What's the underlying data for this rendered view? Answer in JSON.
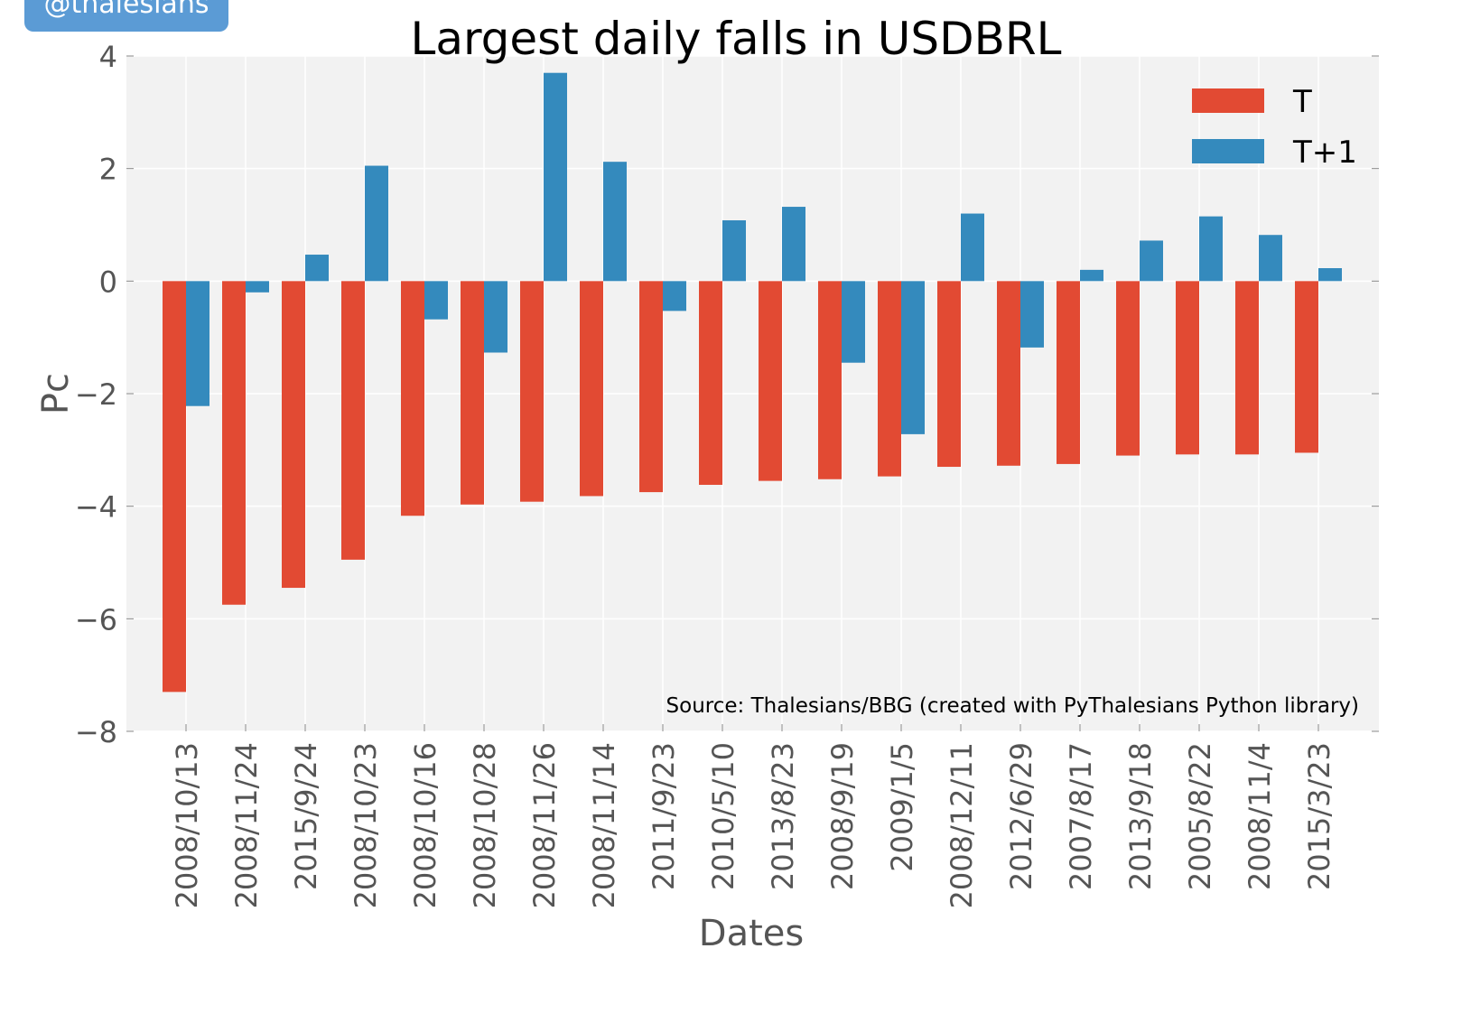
{
  "badge": "@thalesians",
  "colors": {
    "T": "#e24a33",
    "T1": "#348abd",
    "plot_bg": "#f2f2f2",
    "grid": "#ffffff",
    "text": "#555555",
    "title": "#000000"
  },
  "chart_data": {
    "type": "bar",
    "title": "Largest daily falls in USDBRL",
    "xlabel": "Dates",
    "ylabel": "Pc",
    "ylim": [
      -8,
      4
    ],
    "yticks": [
      4,
      2,
      0,
      -2,
      -4,
      -6,
      -8
    ],
    "ytick_labels": [
      "4",
      "2",
      "0",
      "−2",
      "−4",
      "−6",
      "−8"
    ],
    "grid": true,
    "legend_position": "top-right",
    "source": "Source: Thalesians/BBG (created with PyThalesians Python library)",
    "categories": [
      "2008/10/13",
      "2008/11/24",
      "2015/9/24",
      "2008/10/23",
      "2008/10/16",
      "2008/10/28",
      "2008/11/26",
      "2008/11/14",
      "2011/9/23",
      "2010/5/10",
      "2013/8/23",
      "2008/9/19",
      "2009/1/5",
      "2008/12/11",
      "2012/6/29",
      "2007/8/17",
      "2013/9/18",
      "2005/8/22",
      "2008/11/4",
      "2015/3/23"
    ],
    "series": [
      {
        "name": "T",
        "color": "#e24a33",
        "values": [
          -7.3,
          -5.75,
          -5.45,
          -4.95,
          -4.17,
          -3.97,
          -3.92,
          -3.82,
          -3.75,
          -3.62,
          -3.55,
          -3.52,
          -3.47,
          -3.3,
          -3.28,
          -3.25,
          -3.1,
          -3.08,
          -3.08,
          -3.05
        ]
      },
      {
        "name": "T+1",
        "color": "#348abd",
        "values": [
          -2.22,
          -0.2,
          0.47,
          2.05,
          -0.68,
          -1.27,
          3.7,
          2.12,
          -0.53,
          1.08,
          1.32,
          -1.45,
          -2.72,
          1.2,
          -1.18,
          0.2,
          0.72,
          1.15,
          0.82,
          0.23
        ]
      }
    ]
  }
}
